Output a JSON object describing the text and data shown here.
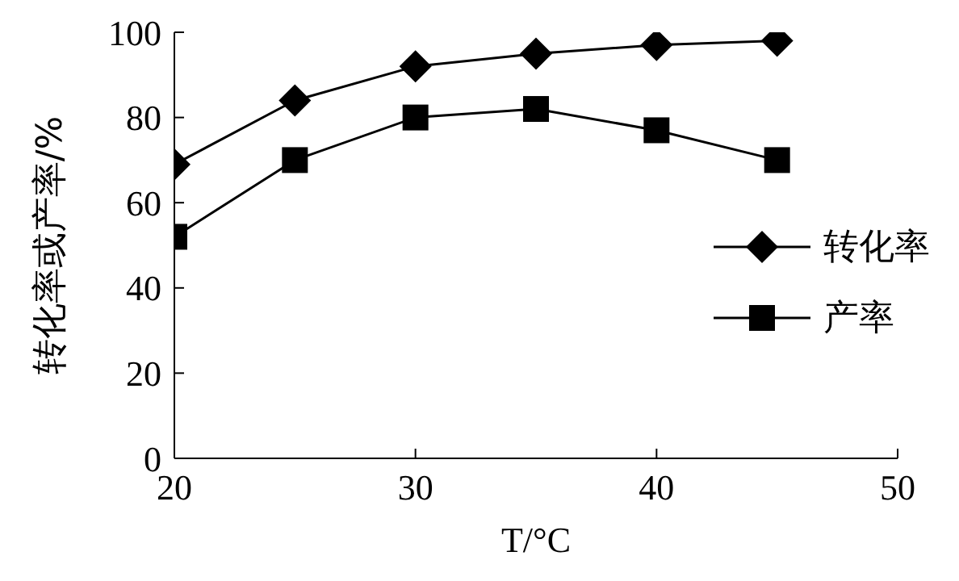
{
  "chart_data": {
    "type": "line",
    "xlabel": "T/°C",
    "ylabel": "转化率或产率/%",
    "x": [
      20,
      25,
      30,
      35,
      40,
      45
    ],
    "series": [
      {
        "name": "转化率",
        "color": "#000000",
        "marker": "diamond",
        "values": [
          69,
          84,
          92,
          95,
          97,
          98
        ]
      },
      {
        "name": "产率",
        "color": "#000000",
        "marker": "square",
        "values": [
          52,
          70,
          80,
          82,
          77,
          70
        ]
      }
    ],
    "xlim": [
      20,
      50
    ],
    "xticks": [
      20,
      30,
      40,
      50
    ],
    "ylim": [
      0,
      100
    ],
    "yticks": [
      0,
      20,
      40,
      60,
      80,
      100
    ],
    "grid": false,
    "legend": "right",
    "line_style": "solid"
  }
}
